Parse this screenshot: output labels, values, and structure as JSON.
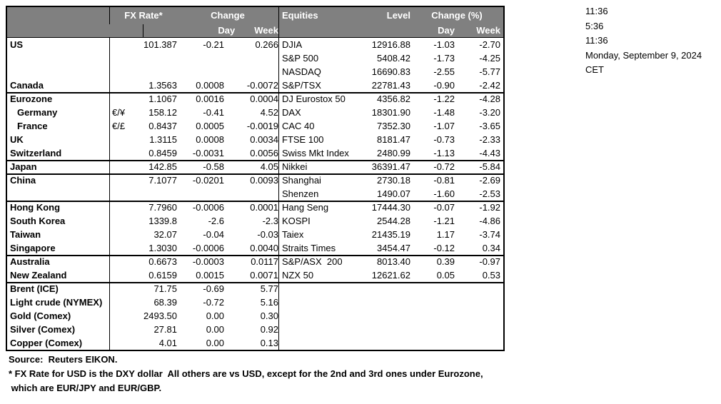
{
  "colors": {
    "header_bg": "#808080",
    "header_text": "#ffffff",
    "border": "#000000",
    "background": "#ffffff"
  },
  "clock": {
    "lines": [
      "11:36",
      "5:36",
      "11:36",
      "Monday, September 9, 2024",
      "CET"
    ]
  },
  "table": {
    "headers": {
      "fx_rate": "FX Rate*",
      "change": "Change",
      "day": "Day",
      "week": "Week",
      "equities": "Equities",
      "level": "Level",
      "change_pct": "Change (%)"
    },
    "rows": [
      {
        "divider": false,
        "fx": {
          "name": "US",
          "pair": "",
          "rate": "101.387",
          "day": "-0.21",
          "week": "0.266"
        },
        "eq": {
          "name": "DJIA",
          "level": "12916.88",
          "day": "-1.03",
          "week": "-2.70"
        }
      },
      {
        "divider": false,
        "fx": {
          "name": "",
          "pair": "",
          "rate": "",
          "day": "",
          "week": ""
        },
        "eq": {
          "name": "S&P 500",
          "level": "5408.42",
          "day": "-1.73",
          "week": "-4.25"
        }
      },
      {
        "divider": false,
        "fx": {
          "name": "",
          "pair": "",
          "rate": "",
          "day": "",
          "week": ""
        },
        "eq": {
          "name": "NASDAQ",
          "level": "16690.83",
          "day": "-2.55",
          "week": "-5.77"
        }
      },
      {
        "divider": false,
        "fx": {
          "name": "Canada",
          "pair": "",
          "rate": "1.3563",
          "day": "0.0008",
          "week": "-0.0072"
        },
        "eq": {
          "name": "S&P/TSX",
          "level": "22781.43",
          "day": "-0.90",
          "week": "-2.42"
        }
      },
      {
        "divider": true,
        "fx": {
          "name": "Eurozone",
          "pair": "",
          "rate": "1.1067",
          "day": "0.0016",
          "week": "0.0004"
        },
        "eq": {
          "name": "DJ Eurostox 50",
          "level": "4356.82",
          "day": "-1.22",
          "week": "-4.28"
        }
      },
      {
        "divider": false,
        "fx": {
          "name": "Germany",
          "indent": true,
          "pair": "€/¥",
          "rate": "158.12",
          "day": "-0.41",
          "week": "4.52"
        },
        "eq": {
          "name": "DAX",
          "level": "18301.90",
          "day": "-1.48",
          "week": "-3.20"
        }
      },
      {
        "divider": false,
        "fx": {
          "name": "France",
          "indent": true,
          "pair": "€/£",
          "rate": "0.8437",
          "day": "0.0005",
          "week": "-0.0019"
        },
        "eq": {
          "name": "CAC 40",
          "level": "7352.30",
          "day": "-1.07",
          "week": "-3.65"
        }
      },
      {
        "divider": false,
        "fx": {
          "name": "UK",
          "pair": "",
          "rate": "1.3115",
          "day": "0.0008",
          "week": "0.0034"
        },
        "eq": {
          "name": "FTSE 100",
          "level": "8181.47",
          "day": "-0.73",
          "week": "-2.33"
        }
      },
      {
        "divider": false,
        "fx": {
          "name": "Switzerland",
          "pair": "",
          "rate": "0.8459",
          "day": "-0.0031",
          "week": "0.0056"
        },
        "eq": {
          "name": "Swiss Mkt Index",
          "level": "2480.99",
          "day": "-1.13",
          "week": "-4.43"
        }
      },
      {
        "divider": true,
        "fx": {
          "name": "Japan",
          "pair": "",
          "rate": "142.85",
          "day": "-0.58",
          "week": "4.05"
        },
        "eq": {
          "name": "Nikkei",
          "level": "36391.47",
          "day": "-0.72",
          "week": "-5.84"
        }
      },
      {
        "divider": true,
        "fx": {
          "name": "China",
          "pair": "",
          "rate": "7.1077",
          "day": "-0.0201",
          "week": "0.0093"
        },
        "eq": {
          "name": "Shanghai",
          "level": "2730.18",
          "day": "-0.81",
          "week": "-2.69"
        }
      },
      {
        "divider": false,
        "fx": {
          "name": "",
          "pair": "",
          "rate": "",
          "day": "",
          "week": ""
        },
        "eq": {
          "name": "Shenzen",
          "level": "1490.07",
          "day": "-1.60",
          "week": "-2.53"
        }
      },
      {
        "divider": true,
        "fx": {
          "name": "Hong Kong",
          "pair": "",
          "rate": "7.7960",
          "day": "-0.0006",
          "week": "0.0001"
        },
        "eq": {
          "name": "Hang Seng",
          "level": "17444.30",
          "day": "-0.07",
          "week": "-1.92"
        }
      },
      {
        "divider": false,
        "fx": {
          "name": "South Korea",
          "pair": "",
          "rate": "1339.8",
          "day": "-2.6",
          "week": "-2.3"
        },
        "eq": {
          "name": "KOSPI",
          "level": "2544.28",
          "day": "-1.21",
          "week": "-4.86"
        }
      },
      {
        "divider": false,
        "fx": {
          "name": "Taiwan",
          "pair": "",
          "rate": "32.07",
          "day": "-0.04",
          "week": "-0.03"
        },
        "eq": {
          "name": "Taiex",
          "level": "21435.19",
          "day": "1.17",
          "week": "-3.74"
        }
      },
      {
        "divider": false,
        "fx": {
          "name": "Singapore",
          "pair": "",
          "rate": "1.3030",
          "day": "-0.0006",
          "week": "0.0040"
        },
        "eq": {
          "name": "Straits Times",
          "level": "3454.47",
          "day": "-0.12",
          "week": "0.34"
        }
      },
      {
        "divider": true,
        "fx": {
          "name": "Australia",
          "pair": "",
          "rate": "0.6673",
          "day": "-0.0003",
          "week": "0.0117"
        },
        "eq": {
          "name": "S&P/ASX  200",
          "level": "8013.40",
          "day": "0.39",
          "week": "-0.97"
        }
      },
      {
        "divider": false,
        "fx": {
          "name": "New Zealand",
          "pair": "",
          "rate": "0.6159",
          "day": "0.0015",
          "week": "0.0071"
        },
        "eq": {
          "name": "NZX 50",
          "level": "12621.62",
          "day": "0.05",
          "week": "0.53"
        }
      },
      {
        "divider": true,
        "fx": {
          "name": "Brent (ICE)",
          "pair": "",
          "rate": "71.75",
          "day": "-0.69",
          "week": "5.77"
        },
        "eq": {
          "name": "",
          "level": "",
          "day": "",
          "week": ""
        }
      },
      {
        "divider": false,
        "fx": {
          "name": "Light crude (NYMEX)",
          "pair": "",
          "rate": "68.39",
          "day": "-0.72",
          "week": "5.16"
        },
        "eq": {
          "name": "",
          "level": "",
          "day": "",
          "week": ""
        }
      },
      {
        "divider": false,
        "fx": {
          "name": "Gold (Comex)",
          "pair": "",
          "rate": "2493.50",
          "day": "0.00",
          "week": "0.30"
        },
        "eq": {
          "name": "",
          "level": "",
          "day": "",
          "week": ""
        }
      },
      {
        "divider": false,
        "fx": {
          "name": "Silver (Comex)",
          "pair": "",
          "rate": "27.81",
          "day": "0.00",
          "week": "0.92"
        },
        "eq": {
          "name": "",
          "level": "",
          "day": "",
          "week": ""
        }
      },
      {
        "divider": false,
        "fx": {
          "name": "Copper (Comex)",
          "pair": "",
          "rate": "4.01",
          "day": "0.00",
          "week": "0.13"
        },
        "eq": {
          "name": "",
          "level": "",
          "day": "",
          "week": ""
        }
      }
    ]
  },
  "footer": {
    "source": "Source:  Reuters EIKON.",
    "note1": "* FX Rate for USD is the DXY dollar  All others are vs USD, except for the 2nd and 3rd ones under Eurozone,",
    "note2": " which are EUR/JPY and EUR/GBP."
  }
}
